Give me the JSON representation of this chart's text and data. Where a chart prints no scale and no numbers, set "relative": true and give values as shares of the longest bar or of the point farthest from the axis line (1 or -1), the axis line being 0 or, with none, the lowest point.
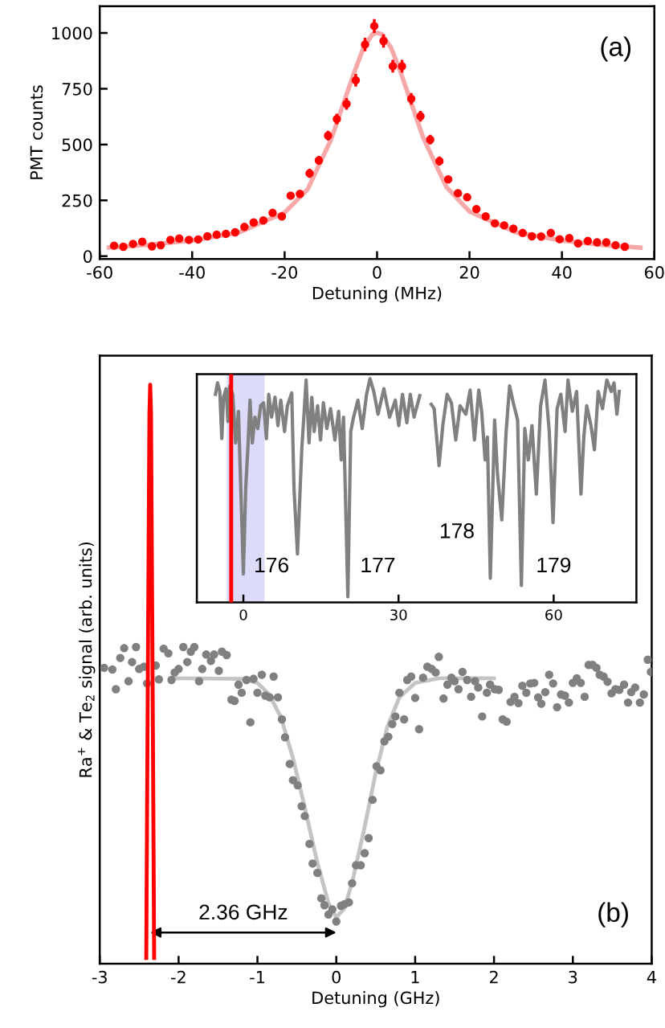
{
  "chart_data": [
    {
      "type": "scatter",
      "xlabel": "Detuning (MHz)",
      "ylabel": "PMT counts",
      "annotations": [
        "(a)"
      ],
      "xlim": [
        -60,
        60
      ],
      "xticks": [
        -60,
        -40,
        -20,
        0,
        20,
        40,
        60
      ],
      "ylim": [
        -13,
        1120
      ],
      "yticks": [
        0,
        250,
        500,
        750,
        1000
      ],
      "series": [
        {
          "type": "scatter",
          "marker": "circle",
          "color": "#ff0000",
          "x": [
            -56.9,
            -54.9,
            -52.8,
            -50.8,
            -48.7,
            -46.8,
            -44.7,
            -42.8,
            -40.7,
            -38.7,
            -36.7,
            -34.7,
            -32.7,
            -30.7,
            -28.7,
            -26.7,
            -24.6,
            -22.6,
            -20.6,
            -18.7,
            -16.7,
            -14.6,
            -12.6,
            -10.6,
            -8.7,
            -6.6,
            -4.6,
            -2.6,
            -0.6,
            1.4,
            3.4,
            5.4,
            7.4,
            9.4,
            11.5,
            13.5,
            15.4,
            17.5,
            19.5,
            21.5,
            23.5,
            25.5,
            27.5,
            29.5,
            31.5,
            33.5,
            35.5,
            37.6,
            39.5,
            41.6,
            43.5,
            45.6,
            47.6,
            49.6,
            51.6,
            53.6
          ],
          "values": [
            47,
            42,
            55,
            65,
            44,
            49,
            73,
            79,
            73,
            75,
            89,
            96,
            100,
            107,
            131,
            151,
            160,
            194,
            178,
            271,
            279,
            371,
            429,
            540,
            614,
            682,
            788,
            948,
            1031,
            964,
            851,
            851,
            705,
            627,
            522,
            426,
            344,
            282,
            264,
            211,
            178,
            147,
            138,
            123,
            104,
            89,
            88,
            104,
            76,
            81,
            57,
            68,
            62,
            62,
            49,
            42
          ],
          "errors": [
            null,
            null,
            null,
            null,
            null,
            null,
            null,
            null,
            null,
            null,
            null,
            null,
            null,
            null,
            null,
            null,
            null,
            null,
            null,
            null,
            null,
            20,
            20,
            22,
            24,
            26,
            28,
            30,
            31,
            30,
            28,
            28,
            26,
            24,
            22,
            20,
            null,
            null,
            null,
            null,
            null,
            null,
            null,
            null,
            null,
            null,
            null,
            null,
            null,
            null,
            null,
            null,
            null,
            null,
            null,
            null
          ]
        },
        {
          "type": "line",
          "color": "#f7a8a8",
          "x": [
            -58,
            -50,
            -40,
            -30,
            -20,
            -15,
            -10,
            -7,
            -5,
            -3,
            -1,
            0,
            1,
            3,
            5,
            7,
            10,
            15,
            20,
            30,
            40,
            50,
            57
          ],
          "values": [
            38,
            50,
            70,
            105,
            195,
            300,
            520,
            700,
            820,
            930,
            995,
            1000,
            995,
            935,
            830,
            710,
            530,
            310,
            200,
            107,
            70,
            48,
            38
          ]
        }
      ]
    },
    {
      "type": "scatter",
      "xlabel": "Detuning (GHz)",
      "ylabel": "Ra$^{+}$ & Te$_{2}$ signal (arb. units)",
      "relative": true,
      "tick_labels": "x",
      "annotations": [
        "(b)",
        "2.36 GHz"
      ],
      "xlim": [
        -3,
        4
      ],
      "xticks": [
        -3,
        -2,
        -1,
        0,
        1,
        2,
        3,
        4
      ],
      "series": [
        {
          "type": "scatter",
          "marker": "circle",
          "color": "#808080",
          "x": [
            -2.945,
            -2.84,
            -2.795,
            -2.74,
            -2.69,
            -2.635,
            -2.59,
            -2.54,
            -2.5,
            -2.44,
            -2.4,
            -2.29,
            -2.25,
            -2.19,
            -2.13,
            -2.09,
            -2.05,
            -2.0,
            -1.94,
            -1.89,
            -1.845,
            -1.8,
            -1.74,
            -1.7,
            -1.65,
            -1.59,
            -1.55,
            -1.49,
            -1.45,
            -1.39,
            -1.33,
            -1.29,
            -1.24,
            -1.2,
            -1.14,
            -1.09,
            -1.05,
            -1.0,
            -0.945,
            -0.9,
            -0.845,
            -0.795,
            -0.74,
            -0.69,
            -0.65,
            -0.59,
            -0.55,
            -0.49,
            -0.44,
            -0.4,
            -0.34,
            -0.3,
            -0.24,
            -0.19,
            -0.15,
            -0.1,
            -0.05,
            0.0,
            0.06,
            0.105,
            0.16,
            0.2,
            0.25,
            0.31,
            0.36,
            0.41,
            0.46,
            0.51,
            0.56,
            0.61,
            0.66,
            0.71,
            0.75,
            0.8,
            0.86,
            0.9,
            0.95,
            1.0,
            1.05,
            1.1,
            1.155,
            1.21,
            1.26,
            1.3,
            1.36,
            1.41,
            1.46,
            1.5,
            1.55,
            1.6,
            1.66,
            1.71,
            1.76,
            1.8,
            1.85,
            1.91,
            1.95,
            2.01,
            2.06,
            2.11,
            2.16,
            2.21,
            2.26,
            2.31,
            2.36,
            2.41,
            2.46,
            2.51,
            2.56,
            2.6,
            2.65,
            2.7,
            2.75,
            2.8,
            2.85,
            2.9,
            2.95,
            3.0,
            3.05,
            3.1,
            3.15,
            3.2,
            3.25,
            3.3,
            3.34,
            3.39,
            3.44,
            3.49,
            3.54,
            3.59,
            3.65,
            3.7,
            3.74,
            3.79,
            3.85,
            3.9,
            3.95,
            3.99
          ],
          "values": [
            0.511,
            0.508,
            0.474,
            0.528,
            0.545,
            0.488,
            0.521,
            0.547,
            0.509,
            0.513,
            0.484,
            0.515,
            0.491,
            0.544,
            0.536,
            0.49,
            0.503,
            0.509,
            0.547,
            0.521,
            0.539,
            0.547,
            0.488,
            0.509,
            0.534,
            0.523,
            0.534,
            0.506,
            0.539,
            0.533,
            0.456,
            0.454,
            0.482,
            0.468,
            0.49,
            0.417,
            0.492,
            0.468,
            0.499,
            0.463,
            0.46,
            0.496,
            0.46,
            0.422,
            0.391,
            0.345,
            0.317,
            0.308,
            0.272,
            0.255,
            0.207,
            0.173,
            0.157,
            0.113,
            0.101,
            0.085,
            0.094,
            0.073,
            0.1,
            0.103,
            0.106,
            0.139,
            0.17,
            0.17,
            0.191,
            0.217,
            0.283,
            0.341,
            0.334,
            0.384,
            0.392,
            0.414,
            0.427,
            0.468,
            0.422,
            0.49,
            0.496,
            0.459,
            0.405,
            0.494,
            0.513,
            0.509,
            0.503,
            0.53,
            0.458,
            0.482,
            0.494,
            0.488,
            0.474,
            0.504,
            0.49,
            0.461,
            0.488,
            0.477,
            0.427,
            0.468,
            0.482,
            0.474,
            0.473,
            0.422,
            0.418,
            0.452,
            0.461,
            0.45,
            0.48,
            0.468,
            0.484,
            0.485,
            0.46,
            0.449,
            0.469,
            0.499,
            0.484,
            0.443,
            0.465,
            0.463,
            0.451,
            0.485,
            0.493,
            0.485,
            0.461,
            0.516,
            0.516,
            0.511,
            0.499,
            0.496,
            0.487,
            0.467,
            0.474,
            0.473,
            0.482,
            0.451,
            0.469,
            0.477,
            0.451,
            0.465,
            0.525,
            0.504
          ]
        },
        {
          "type": "line",
          "color": "#c4c4c4",
          "x": [
            -2.05,
            -1.2,
            -1.0,
            -0.85,
            -0.7,
            -0.55,
            -0.4,
            -0.25,
            -0.1,
            0.0,
            0.1,
            0.2,
            0.35,
            0.5,
            0.65,
            0.8,
            1.0,
            1.3,
            2.0
          ],
          "values": [
            0.493,
            0.492,
            0.485,
            0.465,
            0.425,
            0.355,
            0.27,
            0.18,
            0.105,
            0.08,
            0.095,
            0.14,
            0.23,
            0.33,
            0.41,
            0.46,
            0.485,
            0.493,
            0.493
          ]
        },
        {
          "type": "line",
          "color": "#ff0000",
          "x": [
            -2.41,
            -2.39,
            -2.37,
            -2.36,
            -2.35,
            -2.33,
            -2.31
          ],
          "values": [
            0.01,
            0.5,
            0.95,
            1.0,
            0.95,
            0.5,
            0.01
          ]
        }
      ]
    },
    {
      "type": "line",
      "relative": true,
      "tick_labels": "x",
      "xlim": [
        -9,
        76
      ],
      "xticks": [
        0,
        30,
        60
      ],
      "bands": [
        {
          "axis": "x",
          "from": -3.2,
          "to": 4.1,
          "color": "#dcdcfa"
        }
      ],
      "ref_lines": [
        {
          "axis": "x",
          "value": -2.36,
          "color": "#ff0000"
        }
      ],
      "annotations": [
        {
          "text": "176",
          "x": 0.0,
          "y": 0.127
        },
        {
          "text": "177",
          "x": 20.2,
          "y": 0.025
        },
        {
          "text": "178",
          "x": 47.75,
          "y": 0.108
        },
        {
          "text": "179",
          "x": 53.76,
          "y": 0.076
        }
      ],
      "series": [
        {
          "color": "#808080",
          "x": [
            -5.4,
            -5.0,
            -4.56,
            -4.17,
            -3.84,
            -3.34,
            -3.0,
            -2.62,
            -2.06,
            -1.5,
            -0.95,
            -0.5,
            0.0,
            0.45,
            0.89,
            1.28,
            1.73,
            2.23,
            2.78,
            3.34,
            3.9,
            4.45,
            4.9,
            5.45,
            6.12,
            6.68,
            7.23,
            7.96,
            8.51,
            9.35,
            9.79,
            10.46,
            10.91,
            11.3,
            11.69,
            12.13,
            12.69,
            13.24,
            13.69,
            14.36,
            14.91,
            15.47,
            16.14,
            16.86,
            17.7,
            18.42,
            18.92,
            19.37,
            20.2,
            20.76,
            21.31,
            22.15,
            22.98,
            23.82,
            24.49,
            25.21,
            26.04,
            27.16,
            28.27,
            29.38,
            30.05,
            30.77,
            31.61,
            32.28,
            33.0,
            34.11,
            35.2,
            36.34,
            36.89,
            37.84,
            38.56,
            39.4,
            40.23,
            41.07,
            41.9,
            43.02,
            43.85,
            44.69,
            45.52,
            46.08,
            46.74,
            47.19,
            47.75,
            48.58,
            49.14,
            49.97,
            50.81,
            51.48,
            52.2,
            53.03,
            53.76,
            54.42,
            55.09,
            55.81,
            56.65,
            57.48,
            58.32,
            59.15,
            59.88,
            60.66,
            61.38,
            62.21,
            62.77,
            63.61,
            64.44,
            65.28,
            65.83,
            66.39,
            67.22,
            67.89,
            68.61,
            69.45,
            70.28,
            71.12,
            71.67,
            72.23,
            72.68
          ],
          "values": [
            0.93,
            0.981,
            0.943,
            0.732,
            0.917,
            0.955,
            0.809,
            0.968,
            0.93,
            0.713,
            0.854,
            0.51,
            0.127,
            0.51,
            0.701,
            0.904,
            0.713,
            0.828,
            0.777,
            0.879,
            0.892,
            0.732,
            0.93,
            0.828,
            0.917,
            0.79,
            0.904,
            0.764,
            0.879,
            0.936,
            0.51,
            0.217,
            0.471,
            0.688,
            0.828,
            0.994,
            0.713,
            0.917,
            0.764,
            0.879,
            0.726,
            0.892,
            0.777,
            0.866,
            0.726,
            0.854,
            0.637,
            0.828,
            0.025,
            0.764,
            0.828,
            0.904,
            0.777,
            0.93,
            1.0,
            0.943,
            0.841,
            0.955,
            0.828,
            0.904,
            0.79,
            0.93,
            0.803,
            0.93,
            0.828,
            0.924,
            null,
            0.885,
            0.866,
            0.611,
            0.79,
            0.93,
            0.892,
            0.726,
            0.879,
            0.841,
            0.949,
            0.726,
            0.949,
            0.854,
            0.637,
            0.739,
            0.108,
            0.815,
            0.573,
            0.369,
            0.764,
            0.968,
            0.892,
            0.815,
            0.076,
            0.777,
            0.637,
            0.79,
            0.484,
            0.879,
            0.994,
            0.764,
            0.357,
            0.866,
            0.93,
            0.764,
            0.994,
            0.854,
            0.943,
            0.484,
            0.739,
            0.879,
            0.79,
            0.682,
            0.943,
            0.866,
            0.994,
            0.943,
            0.981,
            0.841,
            0.943
          ]
        }
      ]
    }
  ]
}
